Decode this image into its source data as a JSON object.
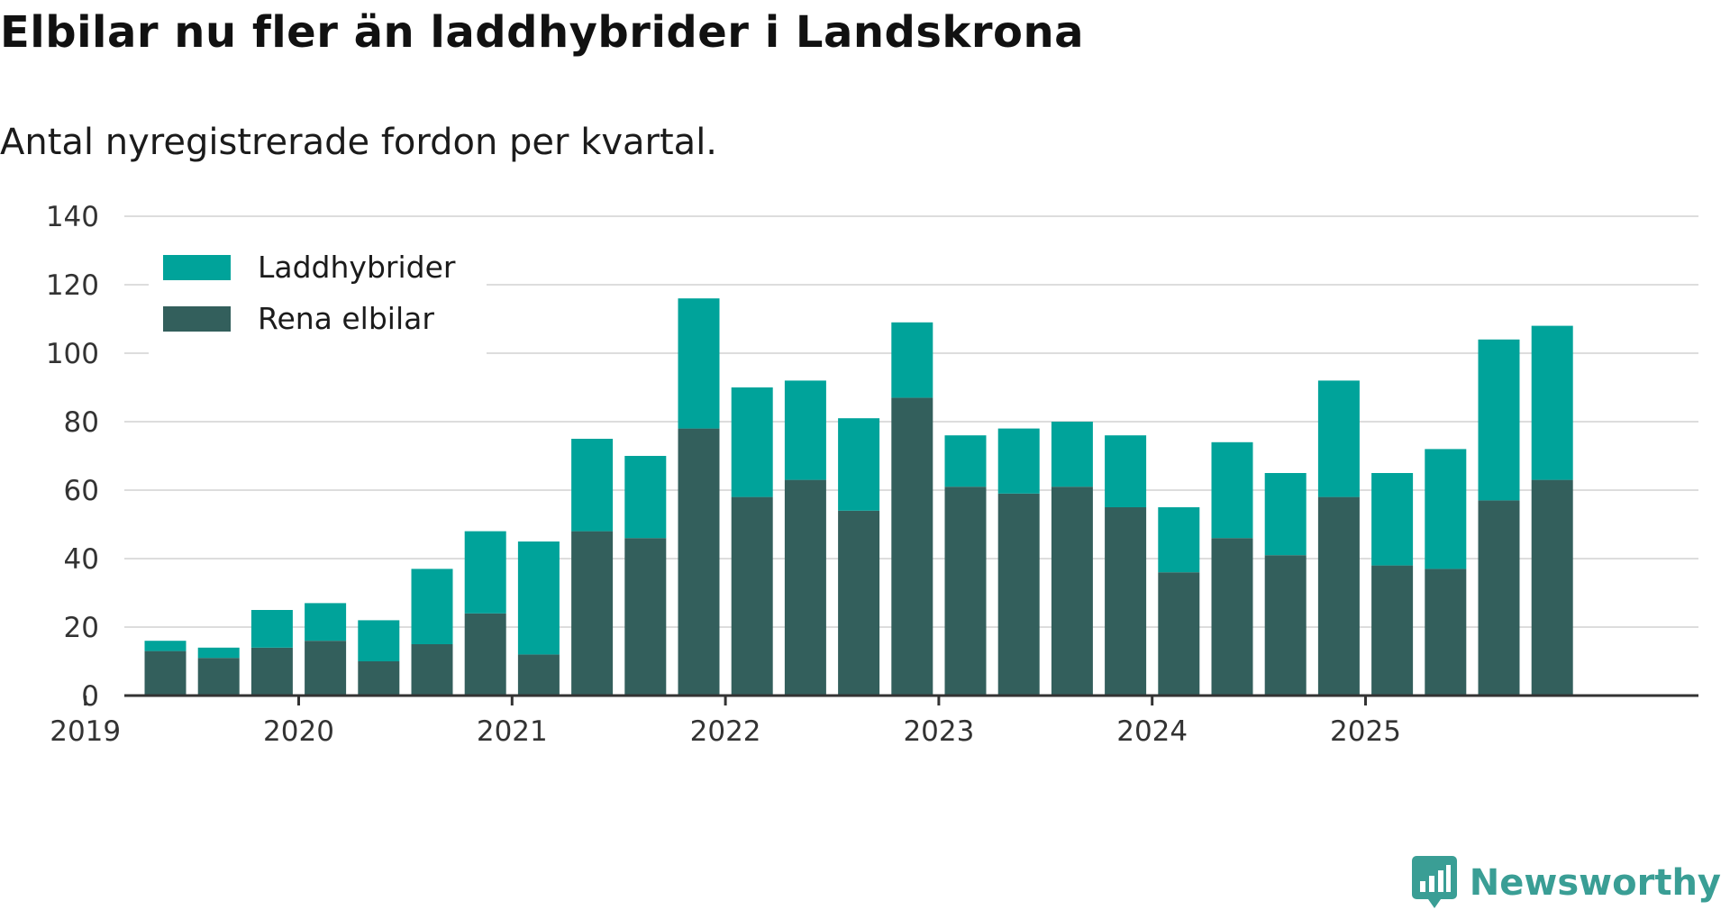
{
  "title": "Elbilar nu fler än laddhybrider i Landskrona",
  "subtitle": "Antal nyregistrerade fordon per kvartal.",
  "brand": {
    "name": "Newsworthy",
    "icon": "newsworthy-logo-icon"
  },
  "colors": {
    "laddhybrider": "#00a39a",
    "rena_elbilar": "#335f5c",
    "grid": "#dddddd",
    "axis": "#333333"
  },
  "chart_data": {
    "type": "bar",
    "stacked": true,
    "title": "Elbilar nu fler än laddhybrider i Landskrona",
    "subtitle": "Antal nyregistrerade fordon per kvartal.",
    "xlabel": "",
    "ylabel": "",
    "ylim": [
      0,
      140
    ],
    "yticks": [
      "0",
      "20",
      "40",
      "60",
      "80",
      "100",
      "120",
      "140"
    ],
    "xticks": [
      "2019",
      "2020",
      "2021",
      "2022",
      "2023",
      "2024",
      "2025"
    ],
    "grid": true,
    "legend_position": "top-left",
    "categories": [
      "2019 Q2",
      "2019 Q3",
      "2019 Q4",
      "2020 Q1",
      "2020 Q2",
      "2020 Q3",
      "2020 Q4",
      "2021 Q1",
      "2021 Q2",
      "2021 Q3",
      "2021 Q4",
      "2022 Q1",
      "2022 Q2",
      "2022 Q3",
      "2022 Q4",
      "2023 Q1",
      "2023 Q2",
      "2023 Q3",
      "2023 Q4",
      "2024 Q1",
      "2024 Q2",
      "2024 Q3",
      "2024 Q4",
      "2025 Q1",
      "2025 Q2",
      "2025 Q3",
      "2025 Q4"
    ],
    "series": [
      {
        "name": "Rena elbilar",
        "values": [
          13,
          11,
          14,
          16,
          10,
          15,
          24,
          12,
          48,
          46,
          78,
          58,
          63,
          54,
          87,
          61,
          59,
          61,
          55,
          36,
          46,
          41,
          58,
          38,
          37,
          57,
          63
        ]
      },
      {
        "name": "Laddhybrider",
        "values": [
          3,
          3,
          11,
          11,
          12,
          22,
          24,
          33,
          27,
          24,
          38,
          32,
          29,
          27,
          22,
          15,
          19,
          19,
          21,
          19,
          28,
          24,
          34,
          27,
          35,
          47,
          45
        ]
      }
    ]
  }
}
